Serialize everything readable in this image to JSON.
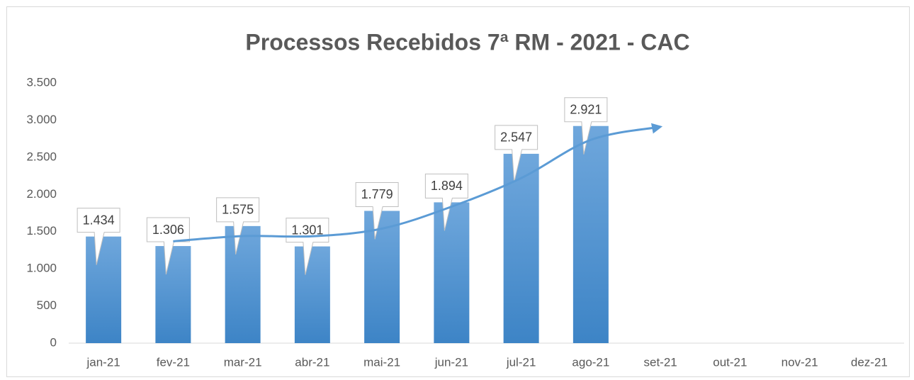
{
  "chart_data": {
    "type": "bar",
    "title": "Processos Recebidos 7ª RM - 2021 - CAC",
    "categories": [
      "jan-21",
      "fev-21",
      "mar-21",
      "abr-21",
      "mai-21",
      "jun-21",
      "jul-21",
      "ago-21",
      "set-21",
      "out-21",
      "nov-21",
      "dez-21"
    ],
    "series": [
      {
        "color": "#5b9bd5",
        "values": [
          1434,
          1306,
          1575,
          1301,
          1779,
          1894,
          2547,
          2921,
          null,
          null,
          null,
          null
        ],
        "value_labels": [
          "1.434",
          "1.306",
          "1.575",
          "1.301",
          "1.779",
          "1.894",
          "2.547",
          "2.921",
          null,
          null,
          null,
          null
        ]
      },
      {
        "type": "trendline",
        "color": "#5b9bd5",
        "values": [
          null,
          1370,
          1440,
          1438,
          1540,
          1836,
          2220,
          2734,
          2910,
          null,
          null,
          null
        ]
      }
    ],
    "ylim": [
      0,
      3500
    ],
    "yticks": [
      0,
      500,
      {
        "value": 1000,
        "label": "1.000"
      },
      {
        "value": 1500,
        "label": "1.500"
      },
      {
        "value": 2000,
        "label": "2.000"
      },
      {
        "value": 2500,
        "label": "2.500"
      },
      {
        "value": 3000,
        "label": "3.000"
      },
      {
        "value": 3500,
        "label": "3.500"
      }
    ],
    "grid": false
  }
}
